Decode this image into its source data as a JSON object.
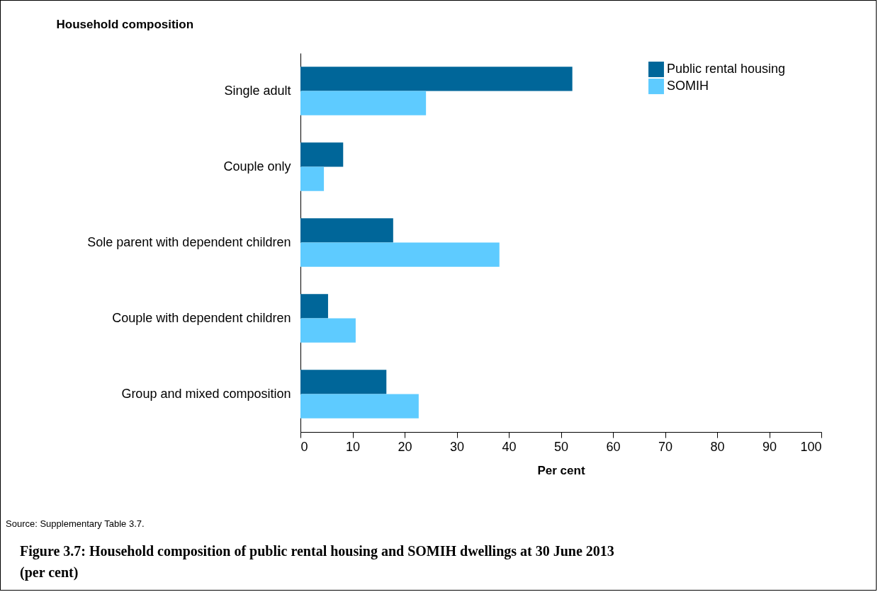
{
  "chart_data": {
    "type": "bar",
    "orientation": "horizontal",
    "title": "Figure 3.7: Household composition of public rental housing and SOMIH dwellings at 30 June 2013 (per cent)",
    "ylabel": "Household composition",
    "xlabel": "Per cent",
    "annotations": [
      "Source: Supplementary Table 3.7."
    ],
    "categories": [
      "Single adult",
      "Couple only",
      "Sole parent with dependent children",
      "Couple with dependent children",
      "Group and mixed composition"
    ],
    "series": [
      {
        "name": "Public rental housing",
        "color": "#006699",
        "values": [
          52.2,
          8.2,
          17.8,
          5.3,
          16.5
        ]
      },
      {
        "name": "SOMIH",
        "color": "#5ecbff",
        "values": [
          24.1,
          4.5,
          38.2,
          10.6,
          22.7
        ]
      }
    ],
    "xlim": [
      0,
      100
    ],
    "xticks": [
      0,
      10,
      20,
      30,
      40,
      50,
      60,
      70,
      80,
      90,
      100
    ],
    "grid": false,
    "legend": "top right"
  }
}
